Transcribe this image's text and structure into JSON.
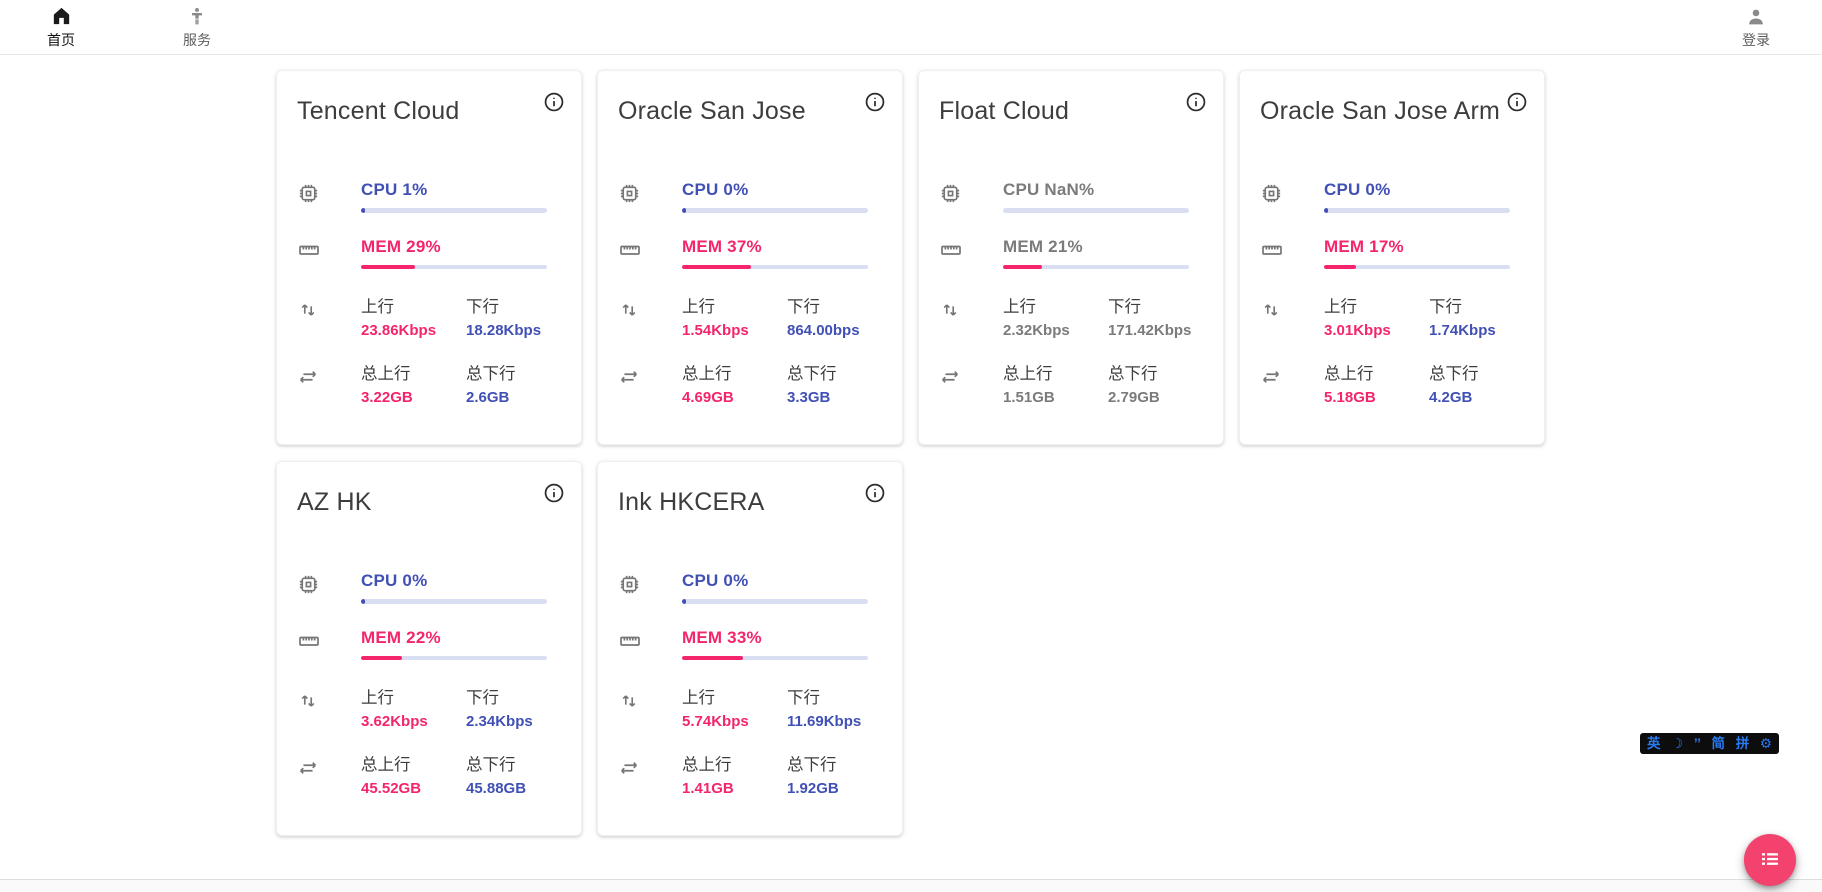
{
  "nav": {
    "items": [
      {
        "label": "首页",
        "icon": "home-icon",
        "active": true
      },
      {
        "label": "服务",
        "icon": "man-icon",
        "active": false
      }
    ],
    "login": {
      "label": "登录",
      "icon": "account-icon"
    }
  },
  "labels": {
    "cpu_prefix": "CPU",
    "mem_prefix": "MEM",
    "up": "上行",
    "down": "下行",
    "total_up": "总上行",
    "total_down": "总下行"
  },
  "colors": {
    "cpu_blue": "#4150b5",
    "mem_pink": "#f4256c",
    "bar_track": "#dadef2",
    "offline_gray": "#7b7b7b",
    "fab_pink": "#f4426e",
    "ime_blue": "#2979f0"
  },
  "servers": [
    {
      "name": "Tencent Cloud",
      "cpu": "1%",
      "cpu_pct": 1,
      "mem": "29%",
      "mem_pct": 29,
      "up": "23.86Kbps",
      "down": "18.28Kbps",
      "total_up": "3.22GB",
      "total_down": "2.6GB",
      "offline": false
    },
    {
      "name": "Oracle San Jose",
      "cpu": "0%",
      "cpu_pct": 0,
      "mem": "37%",
      "mem_pct": 37,
      "up": "1.54Kbps",
      "down": "864.00bps",
      "total_up": "4.69GB",
      "total_down": "3.3GB",
      "offline": false
    },
    {
      "name": "Float Cloud",
      "cpu": "NaN%",
      "cpu_pct": null,
      "mem": "21%",
      "mem_pct": 21,
      "up": "2.32Kbps",
      "down": "171.42Kbps",
      "total_up": "1.51GB",
      "total_down": "2.79GB",
      "offline": true
    },
    {
      "name": "Oracle San Jose Arm",
      "cpu": "0%",
      "cpu_pct": 0,
      "mem": "17%",
      "mem_pct": 17,
      "up": "3.01Kbps",
      "down": "1.74Kbps",
      "total_up": "5.18GB",
      "total_down": "4.2GB",
      "offline": false
    },
    {
      "name": "AZ HK",
      "cpu": "0%",
      "cpu_pct": 0,
      "mem": "22%",
      "mem_pct": 22,
      "up": "3.62Kbps",
      "down": "2.34Kbps",
      "total_up": "45.52GB",
      "total_down": "45.88GB",
      "offline": false
    },
    {
      "name": "Ink HKCERA",
      "cpu": "0%",
      "cpu_pct": 0,
      "mem": "33%",
      "mem_pct": 33,
      "up": "5.74Kbps",
      "down": "11.69Kbps",
      "total_up": "1.41GB",
      "total_down": "1.92GB",
      "offline": false
    }
  ],
  "ime": {
    "lang": "英",
    "simplified": "简",
    "scheme": "拼",
    "moon": "☽",
    "punct": "’’",
    "gear": "⚙"
  }
}
